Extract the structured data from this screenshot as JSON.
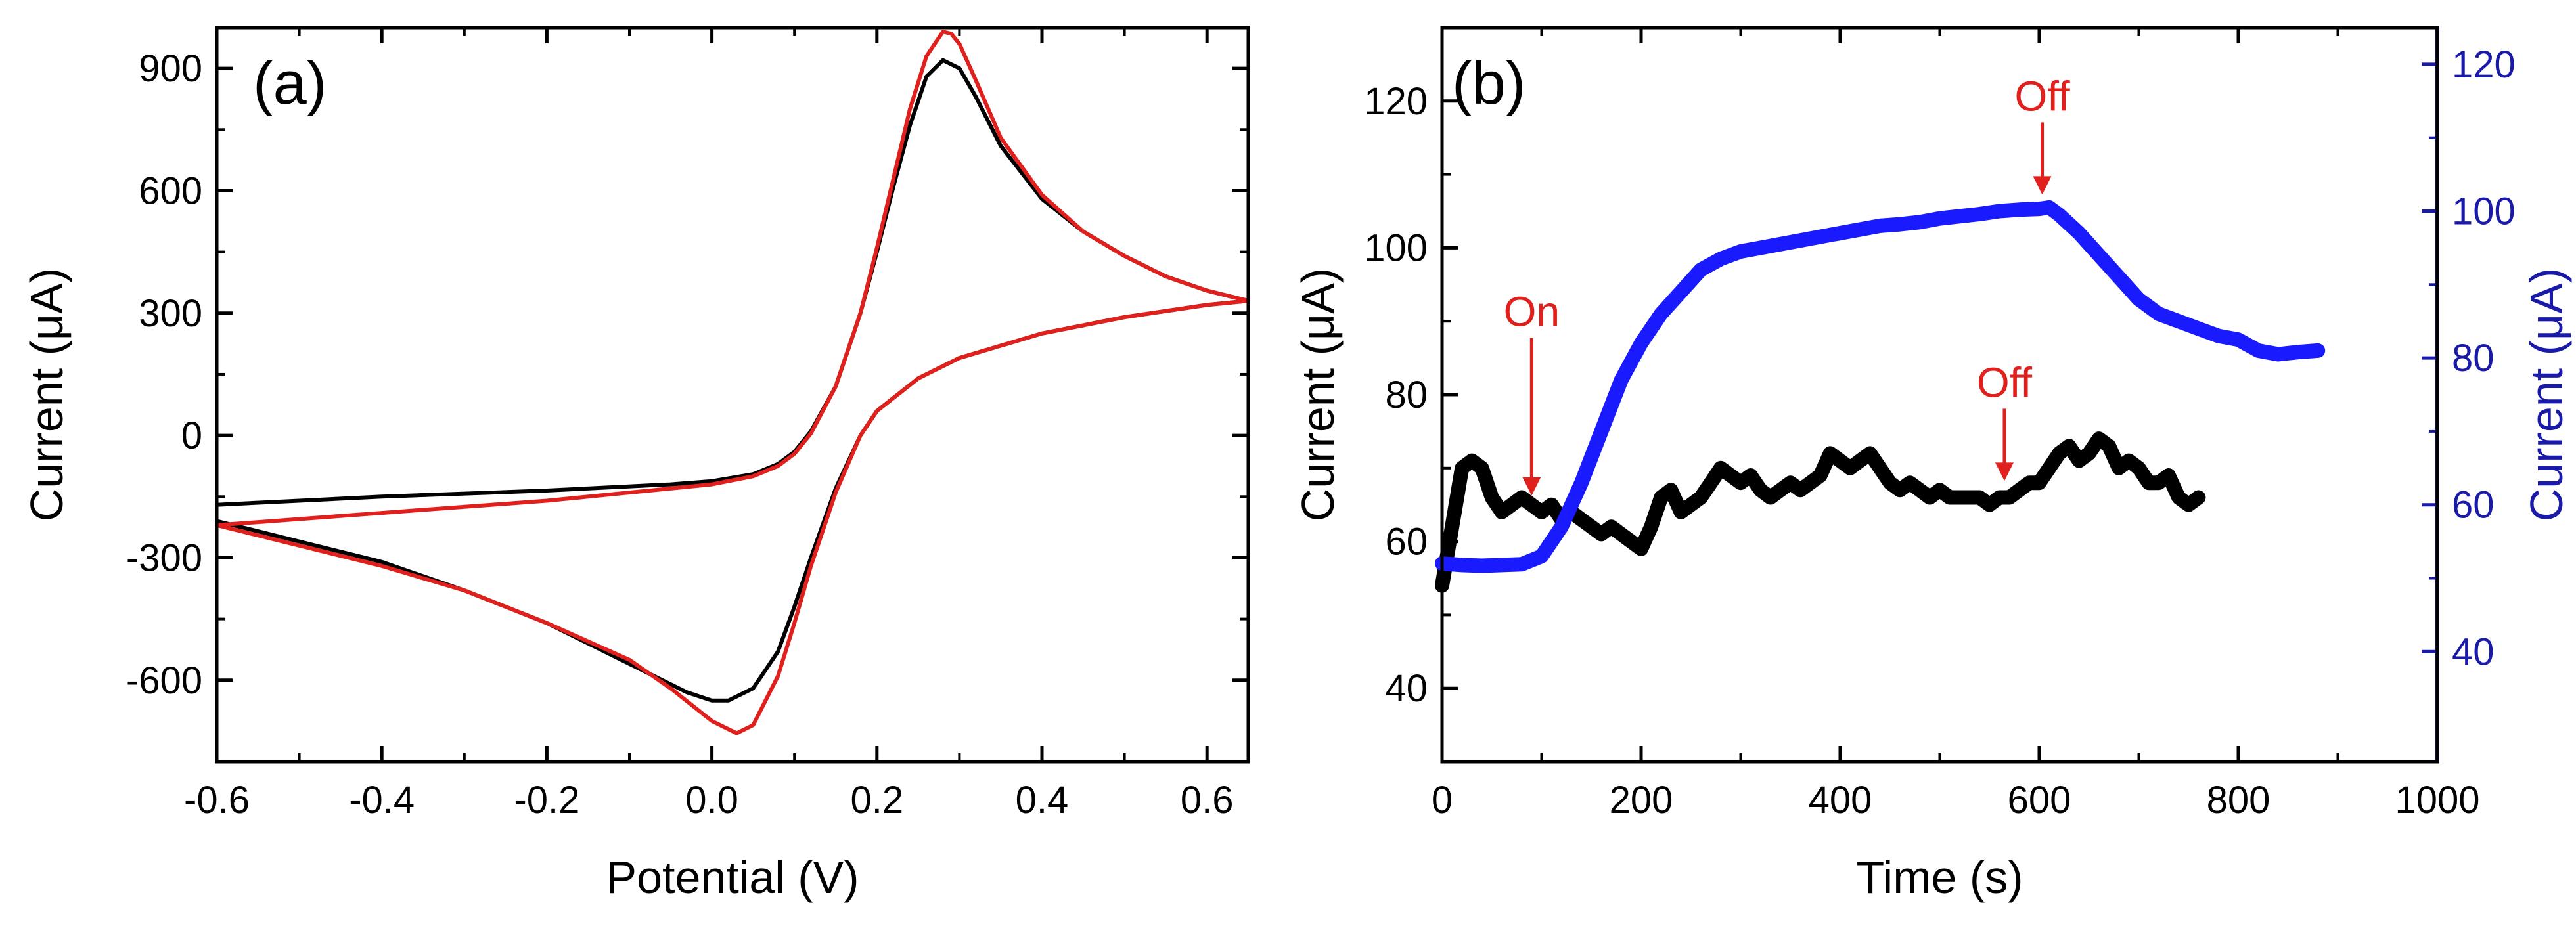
{
  "chart_data": [
    {
      "type": "line",
      "panel_label": "(a)",
      "title": "",
      "xlabel": "Potential (V)",
      "ylabel": "Current (μA)",
      "xlim": [
        -0.6,
        0.65
      ],
      "ylim": [
        -800,
        1000
      ],
      "xticks": [
        -0.6,
        -0.4,
        -0.2,
        0.0,
        0.2,
        0.4,
        0.6
      ],
      "xtick_labels": [
        "-0.6",
        "-0.4",
        "-0.2",
        "0.0",
        "0.2",
        "0.4",
        "0.6"
      ],
      "yticks": [
        -600,
        -300,
        0,
        300,
        600,
        900
      ],
      "ytick_labels": [
        "-600",
        "-300",
        "0",
        "300",
        "600",
        "900"
      ],
      "series": [
        {
          "name": "black",
          "color": "#000000",
          "x": [
            -0.6,
            -0.4,
            -0.2,
            -0.05,
            0.0,
            0.05,
            0.08,
            0.1,
            0.12,
            0.15,
            0.18,
            0.2,
            0.22,
            0.24,
            0.26,
            0.28,
            0.3,
            0.32,
            0.35,
            0.4,
            0.45,
            0.5,
            0.55,
            0.6,
            0.65,
            0.6,
            0.5,
            0.4,
            0.3,
            0.25,
            0.2,
            0.18,
            0.15,
            0.12,
            0.1,
            0.08,
            0.05,
            0.02,
            0.0,
            -0.03,
            -0.1,
            -0.2,
            -0.3,
            -0.4,
            -0.5,
            -0.6
          ],
          "y": [
            -170,
            -150,
            -135,
            -120,
            -112,
            -95,
            -70,
            -40,
            10,
            120,
            300,
            450,
            610,
            760,
            880,
            920,
            900,
            830,
            710,
            580,
            500,
            440,
            390,
            355,
            330,
            320,
            290,
            250,
            190,
            140,
            60,
            0,
            -130,
            -300,
            -420,
            -530,
            -620,
            -650,
            -650,
            -630,
            -560,
            -460,
            -380,
            -310,
            -260,
            -210
          ]
        },
        {
          "name": "red",
          "color": "#e0201c",
          "x": [
            -0.6,
            -0.4,
            -0.2,
            -0.05,
            0.0,
            0.05,
            0.08,
            0.1,
            0.12,
            0.15,
            0.18,
            0.2,
            0.22,
            0.24,
            0.26,
            0.28,
            0.29,
            0.3,
            0.32,
            0.35,
            0.4,
            0.45,
            0.5,
            0.55,
            0.6,
            0.65,
            0.6,
            0.5,
            0.4,
            0.3,
            0.25,
            0.2,
            0.18,
            0.15,
            0.12,
            0.1,
            0.08,
            0.05,
            0.03,
            0.0,
            -0.05,
            -0.1,
            -0.2,
            -0.3,
            -0.4,
            -0.5,
            -0.6
          ],
          "y": [
            -220,
            -190,
            -160,
            -130,
            -120,
            -100,
            -75,
            -45,
            5,
            120,
            300,
            460,
            630,
            800,
            930,
            990,
            985,
            960,
            870,
            730,
            590,
            500,
            440,
            390,
            355,
            330,
            320,
            290,
            250,
            190,
            140,
            60,
            0,
            -140,
            -320,
            -460,
            -590,
            -710,
            -730,
            -700,
            -620,
            -550,
            -460,
            -380,
            -320,
            -270,
            -220
          ]
        }
      ]
    },
    {
      "type": "line",
      "panel_label": "(b)",
      "title": "",
      "xlabel": "Time (s)",
      "ylabel": "Current (μA)",
      "y2label": "Current (μA)",
      "xlim": [
        0,
        1000
      ],
      "ylim": [
        30,
        130
      ],
      "y2lim": [
        25,
        125
      ],
      "xticks": [
        0,
        200,
        400,
        600,
        800,
        1000
      ],
      "xtick_labels": [
        "0",
        "200",
        "400",
        "600",
        "800",
        "1000"
      ],
      "yticks": [
        40,
        60,
        80,
        100,
        120
      ],
      "ytick_labels": [
        "40",
        "60",
        "80",
        "100",
        "120"
      ],
      "y2ticks": [
        40,
        60,
        80,
        100,
        120
      ],
      "y2tick_labels": [
        "40",
        "60",
        "80",
        "100",
        "120"
      ],
      "series": [
        {
          "name": "black",
          "axis": "left",
          "color": "#000000",
          "x": [
            0,
            10,
            20,
            30,
            40,
            50,
            60,
            70,
            80,
            90,
            100,
            110,
            120,
            130,
            140,
            150,
            160,
            170,
            180,
            190,
            200,
            210,
            220,
            230,
            240,
            250,
            260,
            270,
            280,
            290,
            300,
            310,
            320,
            330,
            340,
            350,
            360,
            370,
            380,
            390,
            400,
            410,
            420,
            430,
            440,
            450,
            460,
            470,
            480,
            490,
            500,
            510,
            520,
            530,
            540,
            550,
            560,
            570,
            580,
            590,
            600,
            610,
            620,
            630,
            640,
            650,
            660,
            670,
            680,
            690,
            700,
            710,
            720,
            730,
            740,
            750,
            760
          ],
          "y": [
            54,
            62,
            70,
            71,
            70,
            66,
            64,
            65,
            66,
            65,
            64,
            65,
            63,
            64,
            63,
            62,
            61,
            62,
            61,
            60,
            59,
            62,
            66,
            67,
            64,
            65,
            66,
            68,
            70,
            69,
            68,
            69,
            67,
            66,
            67,
            68,
            67,
            68,
            69,
            72,
            71,
            70,
            71,
            72,
            70,
            68,
            67,
            68,
            67,
            66,
            67,
            66,
            66,
            66,
            66,
            65,
            66,
            66,
            67,
            68,
            68,
            70,
            72,
            73,
            71,
            72,
            74,
            73,
            70,
            71,
            70,
            68,
            68,
            69,
            66,
            65,
            66
          ]
        },
        {
          "name": "blue",
          "axis": "right",
          "color": "#1a1aff",
          "x": [
            0,
            20,
            40,
            60,
            80,
            100,
            110,
            120,
            140,
            160,
            180,
            200,
            220,
            240,
            260,
            280,
            300,
            320,
            340,
            360,
            380,
            400,
            420,
            440,
            460,
            480,
            500,
            520,
            540,
            560,
            580,
            600,
            610,
            620,
            640,
            660,
            680,
            700,
            720,
            740,
            760,
            780,
            800,
            820,
            840,
            860,
            880
          ],
          "y": [
            52,
            51.8,
            51.7,
            51.8,
            51.9,
            53,
            55,
            57,
            63,
            70,
            77,
            82,
            86,
            89,
            92,
            93.5,
            94.5,
            95,
            95.5,
            96,
            96.5,
            97,
            97.5,
            98,
            98.2,
            98.5,
            99,
            99.3,
            99.6,
            100,
            100.2,
            100.3,
            100.5,
            99.5,
            97,
            94,
            91,
            88,
            86,
            85,
            84,
            83,
            82.5,
            81,
            80.5,
            80.8,
            81
          ]
        }
      ],
      "annotations": [
        {
          "text": "On",
          "color": "#e0201c",
          "x": 90,
          "y": 65
        },
        {
          "text": "Off",
          "color": "#e0201c",
          "x": 565,
          "y": 67
        },
        {
          "text": "Off",
          "color": "#e0201c",
          "x": 603,
          "y": 101,
          "axis": "right"
        }
      ]
    }
  ]
}
